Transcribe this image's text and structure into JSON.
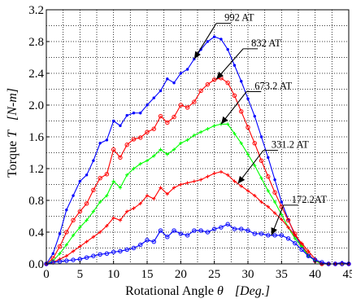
{
  "chart_data": {
    "type": "line",
    "title": "",
    "xlabel": {
      "prefix": "Rotational Angle ",
      "symbol": "θ",
      "unit": "[Deg.]"
    },
    "ylabel": {
      "prefix": "Torque ",
      "symbol": "T",
      "unit": "[N-m]"
    },
    "xlim": [
      0,
      45
    ],
    "ylim": [
      0,
      3.2
    ],
    "xticks": [
      0,
      5,
      10,
      15,
      20,
      25,
      30,
      35,
      40,
      45
    ],
    "yticks": [
      0.0,
      0.4,
      0.8,
      1.2,
      1.6,
      2.0,
      2.4,
      2.8,
      3.2
    ],
    "ytick_labels": [
      "0.0",
      "0.4",
      "0.8",
      "1.2",
      "1.6",
      "2.0",
      "2.4",
      "2.8",
      "3.2"
    ],
    "xgrid_step": 2.5,
    "ygrid_step": 0.2,
    "grid": true,
    "x": [
      0,
      1,
      2,
      3,
      4,
      5,
      6,
      7,
      8,
      9,
      10,
      11,
      12,
      13,
      14,
      15,
      16,
      17,
      18,
      19,
      20,
      21,
      22,
      23,
      24,
      25,
      26,
      27,
      28,
      29,
      30,
      31,
      32,
      33,
      34,
      35,
      36,
      37,
      38,
      39,
      40,
      41,
      42,
      43,
      44,
      45
    ],
    "series": [
      {
        "name": "992 AT",
        "color": "#0000ff",
        "marker": "dot",
        "values": [
          0.0,
          0.13,
          0.38,
          0.68,
          0.86,
          1.04,
          1.12,
          1.3,
          1.52,
          1.56,
          1.8,
          1.74,
          1.87,
          1.9,
          1.9,
          2.0,
          2.09,
          2.18,
          2.33,
          2.28,
          2.4,
          2.45,
          2.58,
          2.7,
          2.8,
          2.86,
          2.83,
          2.7,
          2.5,
          2.3,
          2.08,
          1.86,
          1.6,
          1.34,
          1.06,
          0.78,
          0.56,
          0.36,
          0.22,
          0.1,
          0.04,
          0.0,
          0.0,
          0.0,
          0.02,
          0.0
        ]
      },
      {
        "name": "832 AT",
        "color": "#ff0000",
        "marker": "circle",
        "values": [
          0.0,
          0.07,
          0.22,
          0.4,
          0.55,
          0.66,
          0.76,
          0.93,
          1.08,
          1.13,
          1.44,
          1.34,
          1.5,
          1.57,
          1.59,
          1.66,
          1.7,
          1.86,
          1.78,
          1.85,
          2.0,
          1.97,
          2.04,
          2.18,
          2.26,
          2.32,
          2.34,
          2.28,
          2.12,
          1.92,
          1.72,
          1.52,
          1.3,
          1.1,
          0.9,
          0.72,
          0.55,
          0.38,
          0.24,
          0.12,
          0.04,
          0.0,
          0.0,
          0.0,
          0.0,
          0.0
        ]
      },
      {
        "name": "673.2 AT",
        "color": "#00ff00",
        "marker": "plus",
        "values": [
          0.0,
          0.04,
          0.13,
          0.24,
          0.36,
          0.46,
          0.55,
          0.66,
          0.78,
          0.86,
          1.04,
          0.96,
          1.12,
          1.2,
          1.26,
          1.3,
          1.36,
          1.44,
          1.38,
          1.44,
          1.52,
          1.56,
          1.62,
          1.66,
          1.7,
          1.74,
          1.76,
          1.76,
          1.64,
          1.52,
          1.38,
          1.24,
          1.08,
          0.92,
          0.78,
          0.62,
          0.46,
          0.32,
          0.22,
          0.1,
          0.04,
          0.0,
          0.0,
          0.0,
          0.0,
          0.0
        ]
      },
      {
        "name": "331.2 AT",
        "color": "#ff0000",
        "marker": "plus",
        "values": [
          0.0,
          0.02,
          0.06,
          0.1,
          0.16,
          0.22,
          0.28,
          0.34,
          0.4,
          0.48,
          0.58,
          0.55,
          0.66,
          0.7,
          0.76,
          0.86,
          0.82,
          0.96,
          0.88,
          0.96,
          1.0,
          1.02,
          1.04,
          1.06,
          1.1,
          1.14,
          1.16,
          1.12,
          1.04,
          0.98,
          0.92,
          0.86,
          0.78,
          0.72,
          0.64,
          0.56,
          0.46,
          0.36,
          0.26,
          0.16,
          0.06,
          0.0,
          0.0,
          0.0,
          0.0,
          0.0
        ]
      },
      {
        "name": "172.2AT",
        "color": "#0000ff",
        "marker": "circle",
        "values": [
          0.0,
          0.02,
          0.03,
          0.04,
          0.05,
          0.06,
          0.08,
          0.1,
          0.12,
          0.13,
          0.15,
          0.16,
          0.18,
          0.2,
          0.24,
          0.3,
          0.28,
          0.42,
          0.34,
          0.42,
          0.38,
          0.36,
          0.42,
          0.42,
          0.4,
          0.44,
          0.46,
          0.5,
          0.44,
          0.44,
          0.42,
          0.38,
          0.38,
          0.36,
          0.36,
          0.36,
          0.32,
          0.26,
          0.18,
          0.1,
          0.05,
          0.02,
          0.0,
          0.0,
          0.0,
          0.0
        ]
      }
    ],
    "annotations": [
      {
        "text": "992 AT",
        "series": 0,
        "at_x": 22.0,
        "label_x": 26.5,
        "label_y": 3.06
      },
      {
        "text": "832 AT",
        "series": 1,
        "at_x": 25.3,
        "label_x": 30.5,
        "label_y": 2.74
      },
      {
        "text": "673.2 AT",
        "series": 2,
        "at_x": 26.0,
        "label_x": 31.0,
        "label_y": 2.2
      },
      {
        "text": "331.2 AT",
        "series": 3,
        "at_x": 28.5,
        "label_x": 33.5,
        "label_y": 1.46
      },
      {
        "text": "172.2AT",
        "series": 4,
        "at_x": 33.5,
        "label_x": 36.5,
        "label_y": 0.77
      }
    ]
  }
}
